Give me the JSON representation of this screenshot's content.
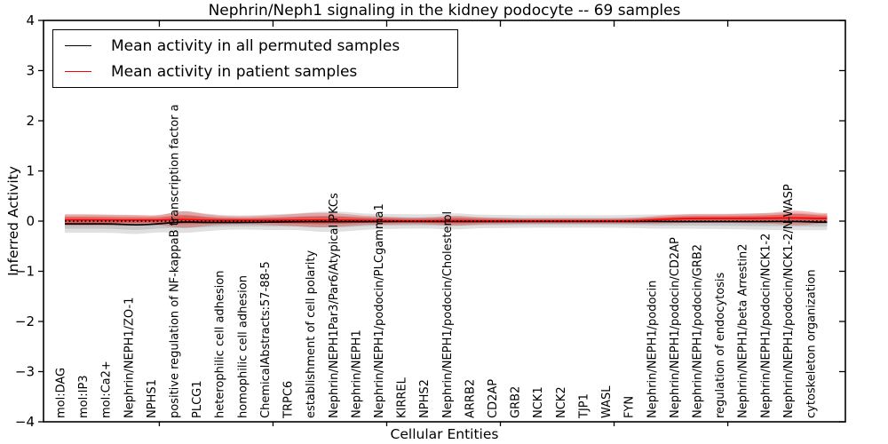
{
  "title": "Nephrin/Neph1 signaling in the kidney podocyte -- 69 samples",
  "axes": {
    "ylabel": "Inferred Activity",
    "xlabel": "Cellular Entities"
  },
  "legend": {
    "items": [
      {
        "label": "Mean activity in all permuted samples",
        "color": "#000000"
      },
      {
        "label": "Mean activity in patient samples",
        "color": "#ff0000"
      }
    ]
  },
  "chart_data": {
    "type": "violin",
    "title": "Nephrin/Neph1 signaling in the kidney podocyte -- 69 samples",
    "xlabel": "Cellular Entities",
    "ylabel": "Inferred Activity",
    "ylim": [
      -4,
      4
    ],
    "ytick_values": [
      4,
      3,
      2,
      1,
      0,
      -1,
      -2,
      -3,
      -4
    ],
    "ytick_labels": [
      "4",
      "3",
      "2",
      "1",
      "0",
      "−1",
      "−2",
      "−3",
      "−4"
    ],
    "xticks_numeric": [
      5,
      10,
      15,
      20,
      25,
      30
    ],
    "grid": false,
    "legend_position": "upper left",
    "zero_line": 0,
    "categories": [
      "mol:DAG",
      "mol:IP3",
      "mol:Ca2+",
      "Nephrin/NEPH1/ZO-1",
      "NPHS1",
      "positive regulation of NF-kappaB transcription factor a",
      "PLCG1",
      "heterophilic cell adhesion",
      "homophilic cell adhesion",
      "ChemicalAbstracts:57-88-5",
      "TRPC6",
      "establishment of cell polarity",
      "Nephrin/NEPH1Par3/Par6/Atypical PKCs",
      "Nephrin/NEPH1",
      "Nephrin/NEPH1/podocin/PLCgamma1",
      "KIRREL",
      "NPHS2",
      "Nephrin/NEPH1/podocin/Cholesterol",
      "ARRB2",
      "CD2AP",
      "GRB2",
      "NCK1",
      "NCK2",
      "TJP1",
      "WASL",
      "FYN",
      "Nephrin/NEPH1/podocin",
      "Nephrin/NEPH1/podocin/CD2AP",
      "Nephrin/NEPH1/podocin/GRB2",
      "regulation of endocytosis",
      "Nephrin/NEPH1/beta Arrestin2",
      "Nephrin/NEPH1/podocin/NCK1-2",
      "Nephrin/NEPH1/podocin/NCK1-2/N-WASP",
      "cytoskeleton organization"
    ],
    "series": [
      {
        "name": "Mean activity in all permuted samples",
        "line_color": "#000000",
        "fill_color": "#999999",
        "mean": [
          -0.055,
          -0.055,
          -0.055,
          -0.08,
          -0.055,
          -0.012,
          -0.027,
          -0.027,
          -0.027,
          -0.02,
          -0.012,
          -0.012,
          -0.012,
          -0.012,
          -0.006,
          -0.006,
          -0.006,
          -0.006,
          -0.006,
          -0.006,
          -0.006,
          -0.006,
          -0.006,
          -0.006,
          -0.006,
          -0.006,
          -0.01,
          -0.01,
          -0.01,
          -0.01,
          -0.01,
          -0.01,
          -0.006,
          -0.02
        ],
        "spread": [
          0.177,
          0.177,
          0.177,
          0.186,
          0.159,
          0.23,
          0.177,
          0.142,
          0.142,
          0.159,
          0.159,
          0.204,
          0.204,
          0.159,
          0.15,
          0.142,
          0.142,
          0.168,
          0.133,
          0.133,
          0.124,
          0.124,
          0.124,
          0.124,
          0.124,
          0.133,
          0.142,
          0.142,
          0.142,
          0.15,
          0.159,
          0.168,
          0.177,
          0.159
        ]
      },
      {
        "name": "Mean activity in patient samples",
        "line_color": "#ff0000",
        "fill_color": "#dd2222",
        "mean": [
          0.025,
          0.025,
          0.02,
          0.02,
          0.02,
          0.035,
          0.02,
          0.015,
          0.015,
          0.015,
          0.02,
          0.02,
          0.02,
          0.015,
          0.01,
          0.005,
          0.005,
          0.01,
          0.005,
          0.003,
          0.003,
          0.003,
          0.003,
          0.003,
          0.003,
          0.005,
          0.03,
          0.05,
          0.055,
          0.055,
          0.055,
          0.06,
          0.065,
          0.055
        ],
        "spread": [
          0.115,
          0.115,
          0.106,
          0.106,
          0.088,
          0.186,
          0.115,
          0.08,
          0.08,
          0.097,
          0.124,
          0.15,
          0.133,
          0.088,
          0.08,
          0.062,
          0.071,
          0.106,
          0.071,
          0.062,
          0.053,
          0.053,
          0.053,
          0.053,
          0.053,
          0.062,
          0.08,
          0.088,
          0.088,
          0.088,
          0.097,
          0.106,
          0.159,
          0.106
        ]
      }
    ]
  }
}
